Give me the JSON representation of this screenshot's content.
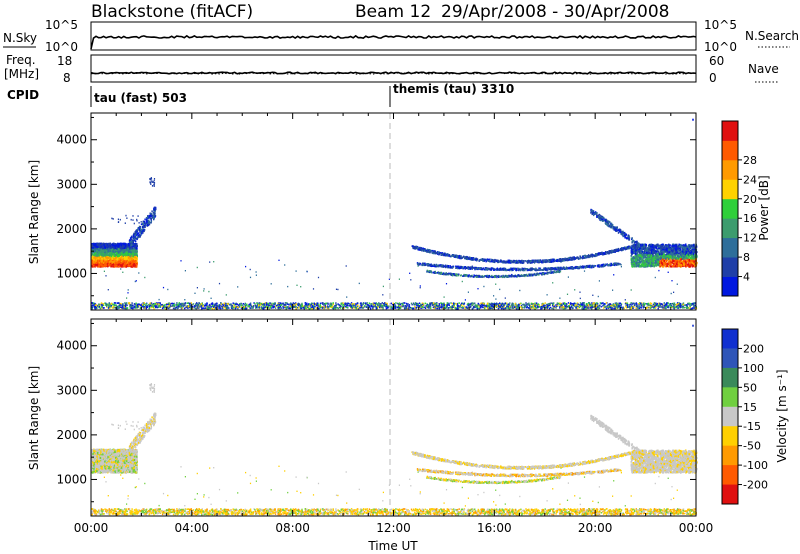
{
  "header": {
    "station_title": "Blackstone (fitACF)",
    "beam_label": "Beam 12",
    "date_range": "29/Apr/2008 - 30/Apr/2008"
  },
  "nsky_panel": {
    "left_label": "N.Sky",
    "right_label": "N.Search",
    "left_ticks": [
      "10^5",
      "10^0"
    ],
    "right_ticks": [
      "10^5",
      "10^0"
    ]
  },
  "freq_panel": {
    "left_label_1": "Freq.",
    "left_label_2": "[MHz]",
    "right_label": "Nave",
    "left_ticks": [
      "18",
      "8"
    ],
    "right_ticks": [
      "60",
      "0"
    ]
  },
  "cpid_panel": {
    "label": "CPID",
    "modes": [
      {
        "name": "tau (fast) 503",
        "start_hour": 0
      },
      {
        "name": "themis (tau) 3310",
        "start_hour": 12
      }
    ]
  },
  "chart_data": [
    {
      "type": "heatmap",
      "name": "power-panel",
      "ylabel": "Slant Range [km]",
      "ylim": [
        180,
        4600
      ],
      "yticks": [
        1000,
        2000,
        3000,
        4000
      ],
      "colorbar": {
        "label": "Power [dB]",
        "tick_labels": [
          "4",
          "8",
          "12",
          "16",
          "20",
          "24",
          "28"
        ],
        "colors": [
          "#0018e0",
          "#1f3fa8",
          "#2e6e9a",
          "#3c9c6e",
          "#2fcf3a",
          "#ffd200",
          "#ff9a00",
          "#ff5a00",
          "#e01010"
        ]
      },
      "regions": [
        {
          "label": "ground scatter band",
          "x_hours": [
            0.0,
            24.0
          ],
          "range_km": [
            200,
            350
          ]
        },
        {
          "label": "early echoes",
          "x_hours": [
            0.0,
            1.8
          ],
          "range_km": [
            1100,
            1700
          ]
        },
        {
          "label": "rising arc",
          "x_hours": [
            1.5,
            2.6
          ],
          "range_km": [
            1700,
            3150
          ]
        },
        {
          "label": "upper band",
          "x_hours": [
            12.7,
            21.5
          ],
          "range_km": [
            1250,
            1650
          ]
        },
        {
          "label": "middle band",
          "x_hours": [
            12.8,
            21.0
          ],
          "range_km": [
            1080,
            1240
          ]
        },
        {
          "label": "lower band",
          "x_hours": [
            13.2,
            18.5
          ],
          "range_km": [
            900,
            1080
          ]
        },
        {
          "label": "late echoes",
          "x_hours": [
            21.4,
            24.0
          ],
          "range_km": [
            1150,
            1650
          ]
        },
        {
          "label": "descending arc",
          "x_hours": [
            19.8,
            21.8
          ],
          "range_km": [
            1600,
            2450
          ]
        }
      ]
    },
    {
      "type": "heatmap",
      "name": "velocity-panel",
      "xlabel": "Time UT",
      "ylabel": "Slant Range [km]",
      "ylim": [
        180,
        4600
      ],
      "yticks": [
        1000,
        2000,
        3000,
        4000
      ],
      "xticks": [
        "00:00",
        "04:00",
        "08:00",
        "12:00",
        "16:00",
        "20:00",
        "00:00"
      ],
      "colorbar": {
        "label": "Velocity [m s⁻¹]",
        "tick_labels": [
          "200",
          "100",
          "50",
          "15",
          "-15",
          "-50",
          "-100",
          "-200"
        ],
        "colors": [
          "#1030d0",
          "#2f55b8",
          "#3a8a5a",
          "#70d040",
          "#c8c8c8",
          "#ffd000",
          "#ff9a00",
          "#ff5a00",
          "#e01010"
        ]
      }
    }
  ]
}
